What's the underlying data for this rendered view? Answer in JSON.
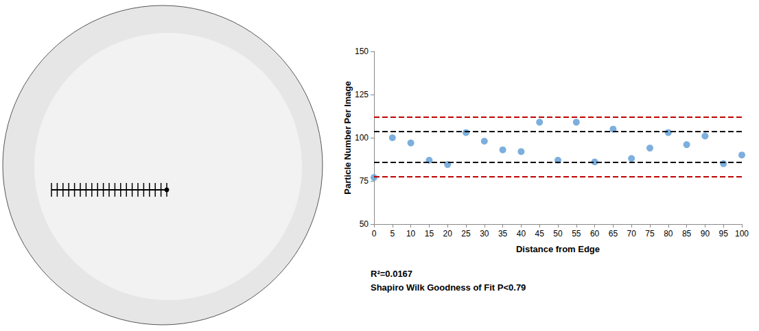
{
  "chart_data": {
    "type": "scatter",
    "x_label": "Distance from Edge",
    "y_label": "Particle Number Per Image",
    "x": [
      0,
      5,
      10,
      15,
      20,
      25,
      30,
      35,
      40,
      45,
      50,
      55,
      60,
      65,
      70,
      75,
      80,
      85,
      90,
      95,
      100
    ],
    "values": [
      77,
      100,
      97,
      87,
      84.5,
      103,
      98,
      93,
      92,
      109,
      87,
      109,
      86,
      105,
      88,
      94,
      103,
      96,
      101,
      85,
      90
    ],
    "color": "#5b9bd5",
    "marker": "circle",
    "xlim": [
      0,
      100
    ],
    "xticks": [
      0,
      5,
      10,
      15,
      20,
      25,
      30,
      35,
      40,
      45,
      50,
      55,
      60,
      65,
      70,
      75,
      80,
      85,
      90,
      95,
      100
    ],
    "ylim": [
      50,
      150
    ],
    "yticks": [
      50,
      75,
      100,
      125,
      150
    ],
    "grid": false,
    "reference_lines": [
      {
        "value": 112,
        "color": "#c00000",
        "line_style": "dashed"
      },
      {
        "value": 103.5,
        "color": "#000000",
        "line_style": "dashed"
      },
      {
        "value": 86,
        "color": "#000000",
        "line_style": "dashed"
      },
      {
        "value": 77.5,
        "color": "#c00000",
        "line_style": "dashed"
      }
    ],
    "annotations": [
      "R²=0.0167",
      "Shapiro Wilk Goodness of Fit P<0.79"
    ]
  }
}
